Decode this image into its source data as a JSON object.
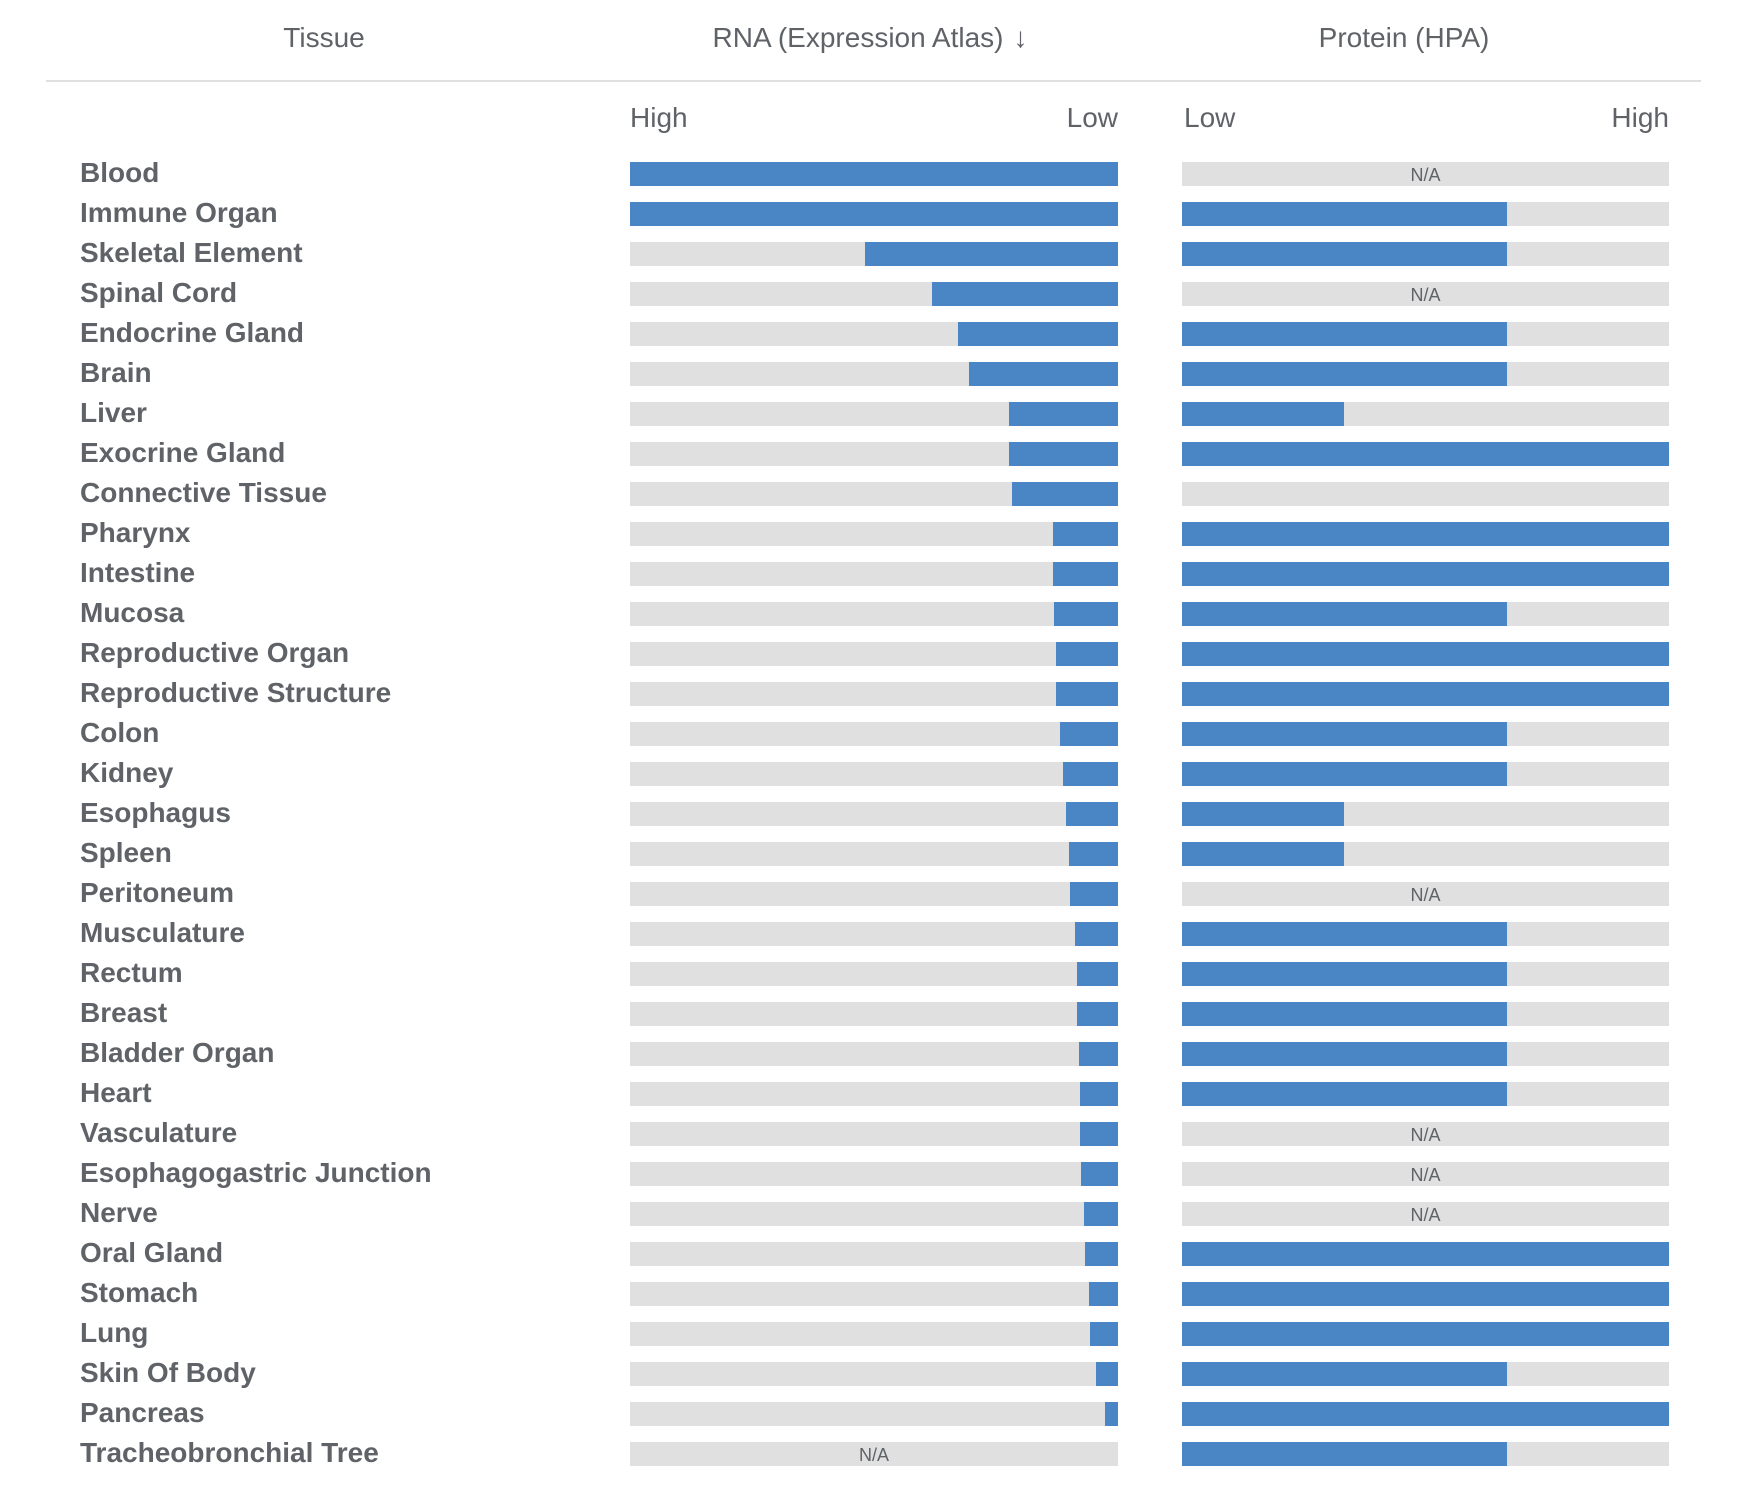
{
  "header": {
    "tissue": "Tissue",
    "rna": "RNA (Expression Atlas)",
    "rna_sort_icon": "↓",
    "protein": "Protein (HPA)"
  },
  "scale": {
    "rna_left": "High",
    "rna_right": "Low",
    "protein_left": "Low",
    "protein_right": "High"
  },
  "na_label": "N/A",
  "colors": {
    "fill": "#4a86c5",
    "track": "#e0e0e0",
    "text": "#5f6368"
  },
  "chart_data": {
    "type": "bar",
    "title": "",
    "categories": [
      "Blood",
      "Immune Organ",
      "Skeletal Element",
      "Spinal Cord",
      "Endocrine Gland",
      "Brain",
      "Liver",
      "Exocrine Gland",
      "Connective Tissue",
      "Pharynx",
      "Intestine",
      "Mucosa",
      "Reproductive Organ",
      "Reproductive Structure",
      "Colon",
      "Kidney",
      "Esophagus",
      "Spleen",
      "Peritoneum",
      "Musculature",
      "Rectum",
      "Breast",
      "Bladder Organ",
      "Heart",
      "Vasculature",
      "Esophagogastric Junction",
      "Nerve",
      "Oral Gland",
      "Stomach",
      "Lung",
      "Skin Of Body",
      "Pancreas",
      "Tracheobronchial Tree"
    ],
    "series": [
      {
        "name": "RNA (Expression Atlas)",
        "scale": "relative fraction of max, bar grows from right (High at left, Low at right)",
        "range": [
          0,
          1
        ],
        "values": [
          1.0,
          1.0,
          0.518,
          0.381,
          0.328,
          0.305,
          0.223,
          0.223,
          0.217,
          0.133,
          0.133,
          0.131,
          0.127,
          0.127,
          0.119,
          0.113,
          0.107,
          0.1,
          0.098,
          0.088,
          0.084,
          0.084,
          0.08,
          0.078,
          0.078,
          0.076,
          0.07,
          0.068,
          0.059,
          0.057,
          0.045,
          0.027,
          null
        ]
      },
      {
        "name": "Protein (HPA)",
        "scale": "level 0-3 (Low at left, High at right); null = N/A",
        "range": [
          0,
          3
        ],
        "values": [
          null,
          2,
          2,
          null,
          2,
          2,
          1,
          3,
          0,
          3,
          3,
          2,
          3,
          3,
          2,
          2,
          1,
          1,
          null,
          2,
          2,
          2,
          2,
          2,
          null,
          null,
          null,
          3,
          3,
          3,
          2,
          3,
          2
        ]
      }
    ],
    "xlabel": "",
    "ylabel": "Tissue",
    "legend": "none"
  }
}
